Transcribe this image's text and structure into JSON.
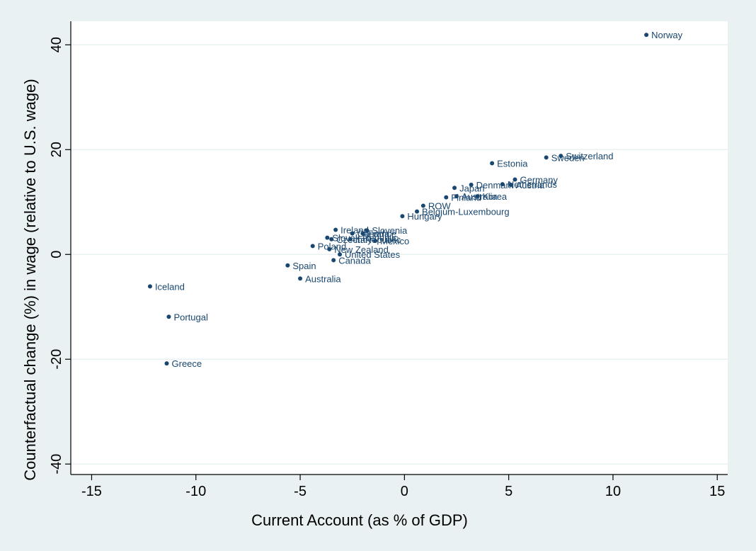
{
  "chart_data": {
    "type": "scatter",
    "title": "",
    "xlabel": "Current Account (as % of GDP)",
    "ylabel": "Counterfactual change (%) in wage (relative to U.S. wage)",
    "xlim": [
      -16,
      15.5
    ],
    "ylim": [
      -42,
      44.5
    ],
    "xticks": [
      -15,
      -10,
      -5,
      0,
      5,
      10,
      15
    ],
    "xtick_labels": [
      "-15",
      "-10",
      "-5",
      "0",
      "5",
      "10",
      "15"
    ],
    "yticks": [
      -40,
      -20,
      0,
      20,
      40
    ],
    "ytick_labels": [
      "-40",
      "-20",
      "0",
      "20",
      "40"
    ],
    "grid": "horizontal",
    "marker_color": "#1a476f",
    "label_color": "#1a476f",
    "plot_background": "#ffffff",
    "outer_background": "#eaf1f3",
    "points": [
      {
        "label": "Norway",
        "x": 11.6,
        "y": 41.9
      },
      {
        "label": "Switzerland",
        "x": 7.5,
        "y": 18.8
      },
      {
        "label": "Sweden",
        "x": 6.8,
        "y": 18.5
      },
      {
        "label": "Estonia",
        "x": 4.2,
        "y": 17.4
      },
      {
        "label": "Germany",
        "x": 5.3,
        "y": 14.3
      },
      {
        "label": "Netherlands",
        "x": 4.7,
        "y": 13.4
      },
      {
        "label": "Austria",
        "x": 5.1,
        "y": 13.3
      },
      {
        "label": "Denmark",
        "x": 3.2,
        "y": 13.3
      },
      {
        "label": "Japan",
        "x": 2.4,
        "y": 12.7
      },
      {
        "label": "Korea",
        "x": 3.5,
        "y": 11.1
      },
      {
        "label": "Australia",
        "x": 2.5,
        "y": 11.1
      },
      {
        "label": "Finland",
        "x": 2.0,
        "y": 10.9
      },
      {
        "label": "ROW",
        "x": 0.9,
        "y": 9.3
      },
      {
        "label": "Belgium-Luxembourg",
        "x": 0.6,
        "y": 8.2
      },
      {
        "label": "Hungary",
        "x": -0.1,
        "y": 7.3
      },
      {
        "label": "Ireland",
        "x": -3.3,
        "y": 4.7
      },
      {
        "label": "Slovenia",
        "x": -1.8,
        "y": 4.6
      },
      {
        "label": "France",
        "x": -2.0,
        "y": 4.0
      },
      {
        "label": "Canada",
        "x": -2.5,
        "y": 4.0
      },
      {
        "label": "Slovak Republic",
        "x": -3.7,
        "y": 3.2
      },
      {
        "label": "Czech Republic",
        "x": -3.5,
        "y": 2.9
      },
      {
        "label": "Italy",
        "x": -2.6,
        "y": 2.9
      },
      {
        "label": "Mexico",
        "x": -1.4,
        "y": 2.6
      },
      {
        "label": "Poland",
        "x": -4.4,
        "y": 1.6
      },
      {
        "label": "New Zealand",
        "x": -3.6,
        "y": 1.0
      },
      {
        "label": "United States",
        "x": -3.1,
        "y": 0.0
      },
      {
        "label": "Canada",
        "x": -3.4,
        "y": -1.1
      },
      {
        "label": "Spain",
        "x": -5.6,
        "y": -2.1
      },
      {
        "label": "Australia",
        "x": -5.0,
        "y": -4.6
      },
      {
        "label": "Iceland",
        "x": -12.2,
        "y": -6.1
      },
      {
        "label": "Portugal",
        "x": -11.3,
        "y": -11.9
      },
      {
        "label": "Greece",
        "x": -11.4,
        "y": -20.8
      }
    ]
  }
}
